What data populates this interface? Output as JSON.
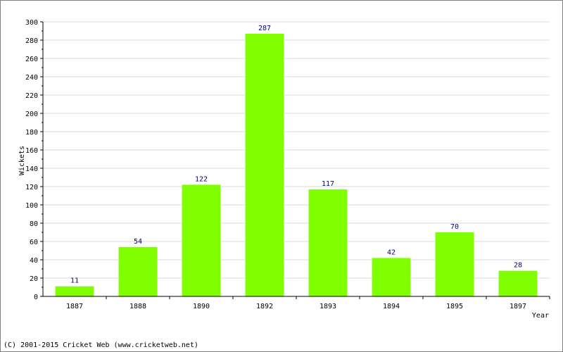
{
  "chart_data": {
    "type": "bar",
    "title": "",
    "xlabel": "Year",
    "ylabel": "Wickets",
    "categories": [
      "1887",
      "1888",
      "1890",
      "1892",
      "1893",
      "1894",
      "1895",
      "1897"
    ],
    "values": [
      11,
      54,
      122,
      287,
      117,
      42,
      70,
      28
    ],
    "ylim": [
      0,
      300
    ],
    "yticks": [
      0,
      20,
      40,
      60,
      80,
      100,
      120,
      140,
      160,
      180,
      200,
      220,
      240,
      260,
      280,
      300
    ],
    "grid": true,
    "legend": "none",
    "colors": {
      "bar": "#7fff00",
      "data_label": "#00007f",
      "grid": "#d9d9d9",
      "axis": "#000000"
    }
  },
  "footer": {
    "copyright": "(C) 2001-2015 Cricket Web (www.cricketweb.net)"
  }
}
